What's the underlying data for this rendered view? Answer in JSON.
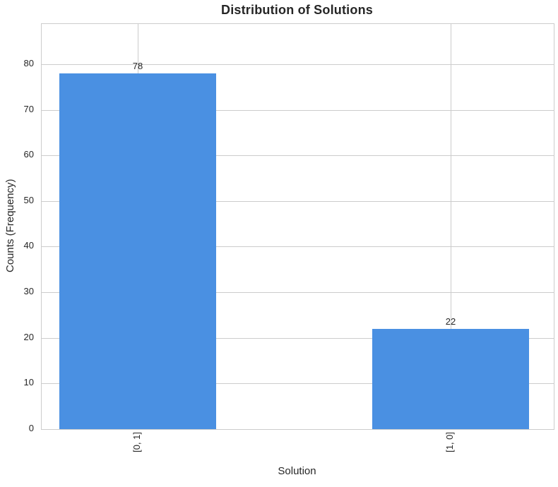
{
  "chart_data": {
    "type": "bar",
    "title": "Distribution of Solutions",
    "xlabel": "Solution",
    "ylabel": "Counts (Frequency)",
    "categories": [
      "[0, 1]",
      "[1, 0]"
    ],
    "values": [
      78,
      22
    ],
    "bar_value_labels": [
      "78",
      "22"
    ],
    "ylim": [
      0,
      88.8
    ],
    "yticks": [
      0,
      10,
      20,
      30,
      40,
      50,
      60,
      70,
      80
    ],
    "x_tick_rotation_deg": 90,
    "grid": "both",
    "legend_position": "none",
    "bar_color": "#4a90e2",
    "grid_color": "#cccccc",
    "spine_color": "#cccccc",
    "text_color": "#262626"
  }
}
